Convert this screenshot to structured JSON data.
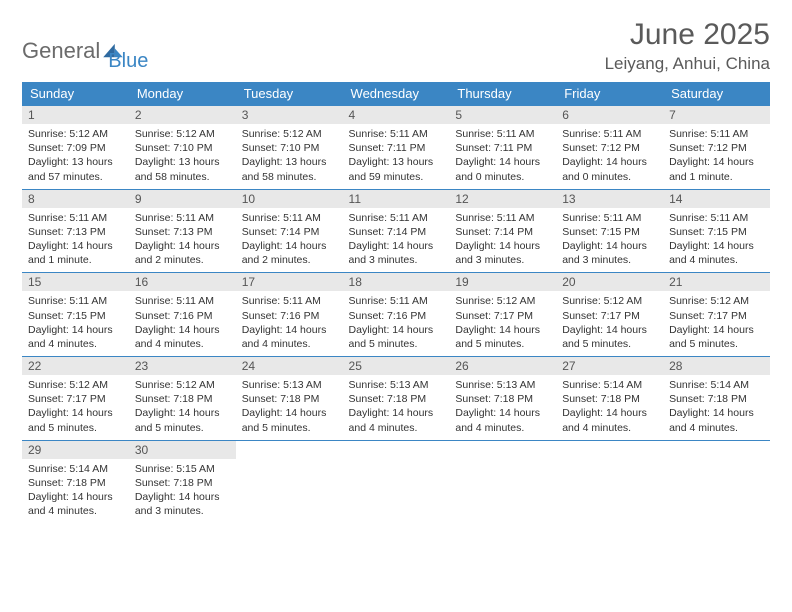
{
  "logo": {
    "word1": "General",
    "word2": "Blue"
  },
  "title": "June 2025",
  "location": "Leiyang, Anhui, China",
  "colors": {
    "header_bg": "#3b86c4",
    "header_fg": "#ffffff",
    "daynum_bg": "#e8e8e8",
    "border": "#3b86c4",
    "text": "#333333",
    "title_fg": "#5a5a5a"
  },
  "weekdays": [
    "Sunday",
    "Monday",
    "Tuesday",
    "Wednesday",
    "Thursday",
    "Friday",
    "Saturday"
  ],
  "days": [
    {
      "n": 1,
      "sr": "5:12 AM",
      "ss": "7:09 PM",
      "dl": "13 hours and 57 minutes."
    },
    {
      "n": 2,
      "sr": "5:12 AM",
      "ss": "7:10 PM",
      "dl": "13 hours and 58 minutes."
    },
    {
      "n": 3,
      "sr": "5:12 AM",
      "ss": "7:10 PM",
      "dl": "13 hours and 58 minutes."
    },
    {
      "n": 4,
      "sr": "5:11 AM",
      "ss": "7:11 PM",
      "dl": "13 hours and 59 minutes."
    },
    {
      "n": 5,
      "sr": "5:11 AM",
      "ss": "7:11 PM",
      "dl": "14 hours and 0 minutes."
    },
    {
      "n": 6,
      "sr": "5:11 AM",
      "ss": "7:12 PM",
      "dl": "14 hours and 0 minutes."
    },
    {
      "n": 7,
      "sr": "5:11 AM",
      "ss": "7:12 PM",
      "dl": "14 hours and 1 minute."
    },
    {
      "n": 8,
      "sr": "5:11 AM",
      "ss": "7:13 PM",
      "dl": "14 hours and 1 minute."
    },
    {
      "n": 9,
      "sr": "5:11 AM",
      "ss": "7:13 PM",
      "dl": "14 hours and 2 minutes."
    },
    {
      "n": 10,
      "sr": "5:11 AM",
      "ss": "7:14 PM",
      "dl": "14 hours and 2 minutes."
    },
    {
      "n": 11,
      "sr": "5:11 AM",
      "ss": "7:14 PM",
      "dl": "14 hours and 3 minutes."
    },
    {
      "n": 12,
      "sr": "5:11 AM",
      "ss": "7:14 PM",
      "dl": "14 hours and 3 minutes."
    },
    {
      "n": 13,
      "sr": "5:11 AM",
      "ss": "7:15 PM",
      "dl": "14 hours and 3 minutes."
    },
    {
      "n": 14,
      "sr": "5:11 AM",
      "ss": "7:15 PM",
      "dl": "14 hours and 4 minutes."
    },
    {
      "n": 15,
      "sr": "5:11 AM",
      "ss": "7:15 PM",
      "dl": "14 hours and 4 minutes."
    },
    {
      "n": 16,
      "sr": "5:11 AM",
      "ss": "7:16 PM",
      "dl": "14 hours and 4 minutes."
    },
    {
      "n": 17,
      "sr": "5:11 AM",
      "ss": "7:16 PM",
      "dl": "14 hours and 4 minutes."
    },
    {
      "n": 18,
      "sr": "5:11 AM",
      "ss": "7:16 PM",
      "dl": "14 hours and 5 minutes."
    },
    {
      "n": 19,
      "sr": "5:12 AM",
      "ss": "7:17 PM",
      "dl": "14 hours and 5 minutes."
    },
    {
      "n": 20,
      "sr": "5:12 AM",
      "ss": "7:17 PM",
      "dl": "14 hours and 5 minutes."
    },
    {
      "n": 21,
      "sr": "5:12 AM",
      "ss": "7:17 PM",
      "dl": "14 hours and 5 minutes."
    },
    {
      "n": 22,
      "sr": "5:12 AM",
      "ss": "7:17 PM",
      "dl": "14 hours and 5 minutes."
    },
    {
      "n": 23,
      "sr": "5:12 AM",
      "ss": "7:18 PM",
      "dl": "14 hours and 5 minutes."
    },
    {
      "n": 24,
      "sr": "5:13 AM",
      "ss": "7:18 PM",
      "dl": "14 hours and 5 minutes."
    },
    {
      "n": 25,
      "sr": "5:13 AM",
      "ss": "7:18 PM",
      "dl": "14 hours and 4 minutes."
    },
    {
      "n": 26,
      "sr": "5:13 AM",
      "ss": "7:18 PM",
      "dl": "14 hours and 4 minutes."
    },
    {
      "n": 27,
      "sr": "5:14 AM",
      "ss": "7:18 PM",
      "dl": "14 hours and 4 minutes."
    },
    {
      "n": 28,
      "sr": "5:14 AM",
      "ss": "7:18 PM",
      "dl": "14 hours and 4 minutes."
    },
    {
      "n": 29,
      "sr": "5:14 AM",
      "ss": "7:18 PM",
      "dl": "14 hours and 4 minutes."
    },
    {
      "n": 30,
      "sr": "5:15 AM",
      "ss": "7:18 PM",
      "dl": "14 hours and 3 minutes."
    }
  ],
  "labels": {
    "sunrise": "Sunrise:",
    "sunset": "Sunset:",
    "daylight": "Daylight:"
  }
}
